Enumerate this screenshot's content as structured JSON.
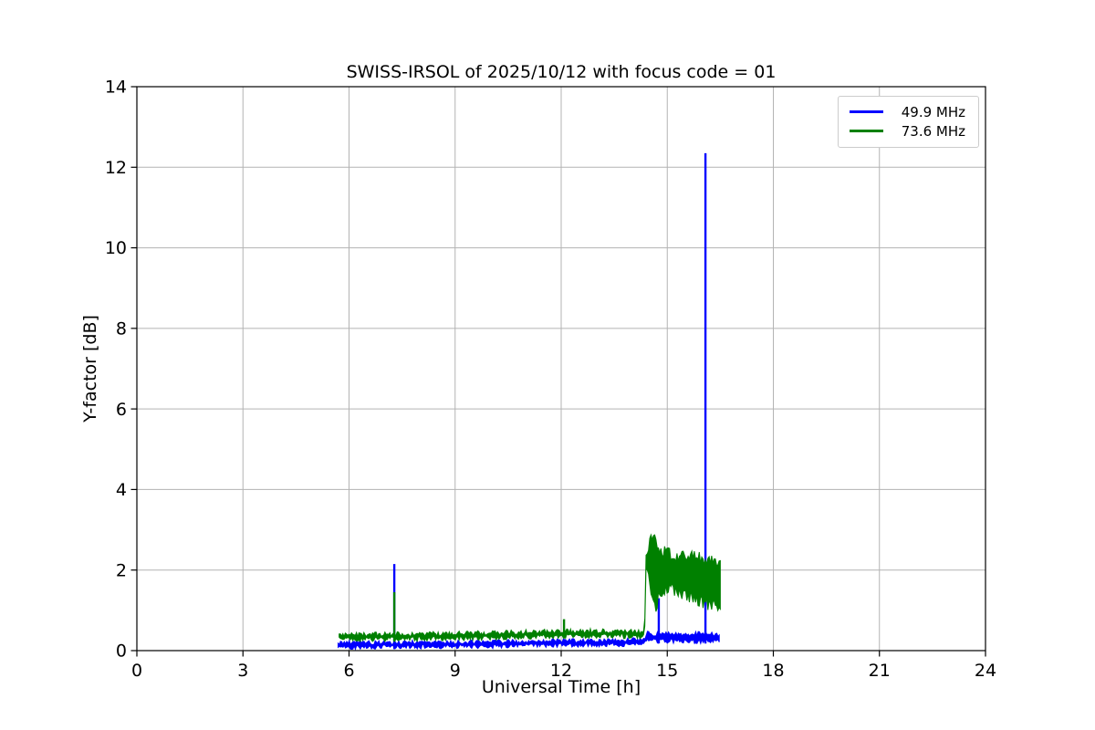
{
  "chart_data": {
    "type": "line",
    "title": "SWISS-IRSOL of 2025/10/12 with focus code = 01",
    "xlabel": "Universal Time [h]",
    "ylabel": "Y-factor [dB]",
    "xlim": [
      0,
      24
    ],
    "ylim": [
      0,
      14
    ],
    "xticks": [
      0,
      3,
      6,
      9,
      12,
      15,
      18,
      21,
      24
    ],
    "yticks": [
      0,
      2,
      4,
      6,
      8,
      10,
      12,
      14
    ],
    "grid": true,
    "grid_color": "#b3b3b3",
    "axis_color": "#000000",
    "background_color": "#ffffff",
    "legend": {
      "position": "upper right",
      "entries": [
        {
          "label": "49.9 MHz",
          "color": "#0000ff"
        },
        {
          "label": "73.6 MHz",
          "color": "#008000"
        }
      ]
    },
    "series": [
      {
        "name": "49.9 MHz",
        "color": "#0000ff",
        "style": "noisy-line",
        "x_start": 5.69,
        "x_end": 16.5,
        "band_envelope": [
          [
            5.69,
            0.03,
            0.25
          ],
          [
            8.0,
            0.04,
            0.26
          ],
          [
            10.0,
            0.05,
            0.27
          ],
          [
            12.0,
            0.08,
            0.3
          ],
          [
            14.36,
            0.1,
            0.32
          ],
          [
            14.4,
            0.18,
            0.48
          ],
          [
            15.5,
            0.18,
            0.48
          ],
          [
            16.5,
            0.17,
            0.47
          ]
        ],
        "spikes": [
          [
            7.28,
            2.15
          ],
          [
            14.76,
            1.3
          ],
          [
            16.08,
            12.35
          ]
        ]
      },
      {
        "name": "73.6 MHz",
        "color": "#008000",
        "style": "noisy-line",
        "x_start": 5.72,
        "x_end": 16.5,
        "band_envelope": [
          [
            5.72,
            0.22,
            0.46
          ],
          [
            8.0,
            0.23,
            0.47
          ],
          [
            10.0,
            0.26,
            0.5
          ],
          [
            12.0,
            0.3,
            0.55
          ],
          [
            13.5,
            0.3,
            0.54
          ],
          [
            14.36,
            0.28,
            0.52
          ],
          [
            14.39,
            1.95,
            2.35
          ],
          [
            14.45,
            1.8,
            2.7
          ],
          [
            14.55,
            1.3,
            2.9
          ],
          [
            14.62,
            0.95,
            2.95
          ],
          [
            14.7,
            0.78,
            2.85
          ],
          [
            14.74,
            1.5,
            2.8
          ],
          [
            14.82,
            1.05,
            2.6
          ],
          [
            14.9,
            1.35,
            2.6
          ],
          [
            15.05,
            1.42,
            2.55
          ],
          [
            15.3,
            1.3,
            2.45
          ],
          [
            15.6,
            1.2,
            2.5
          ],
          [
            15.9,
            1.1,
            2.45
          ],
          [
            16.15,
            1.0,
            2.4
          ],
          [
            16.35,
            0.95,
            2.45
          ],
          [
            16.5,
            0.9,
            2.35
          ]
        ],
        "spikes": [
          [
            7.28,
            1.45
          ],
          [
            12.08,
            0.78
          ]
        ]
      }
    ]
  }
}
